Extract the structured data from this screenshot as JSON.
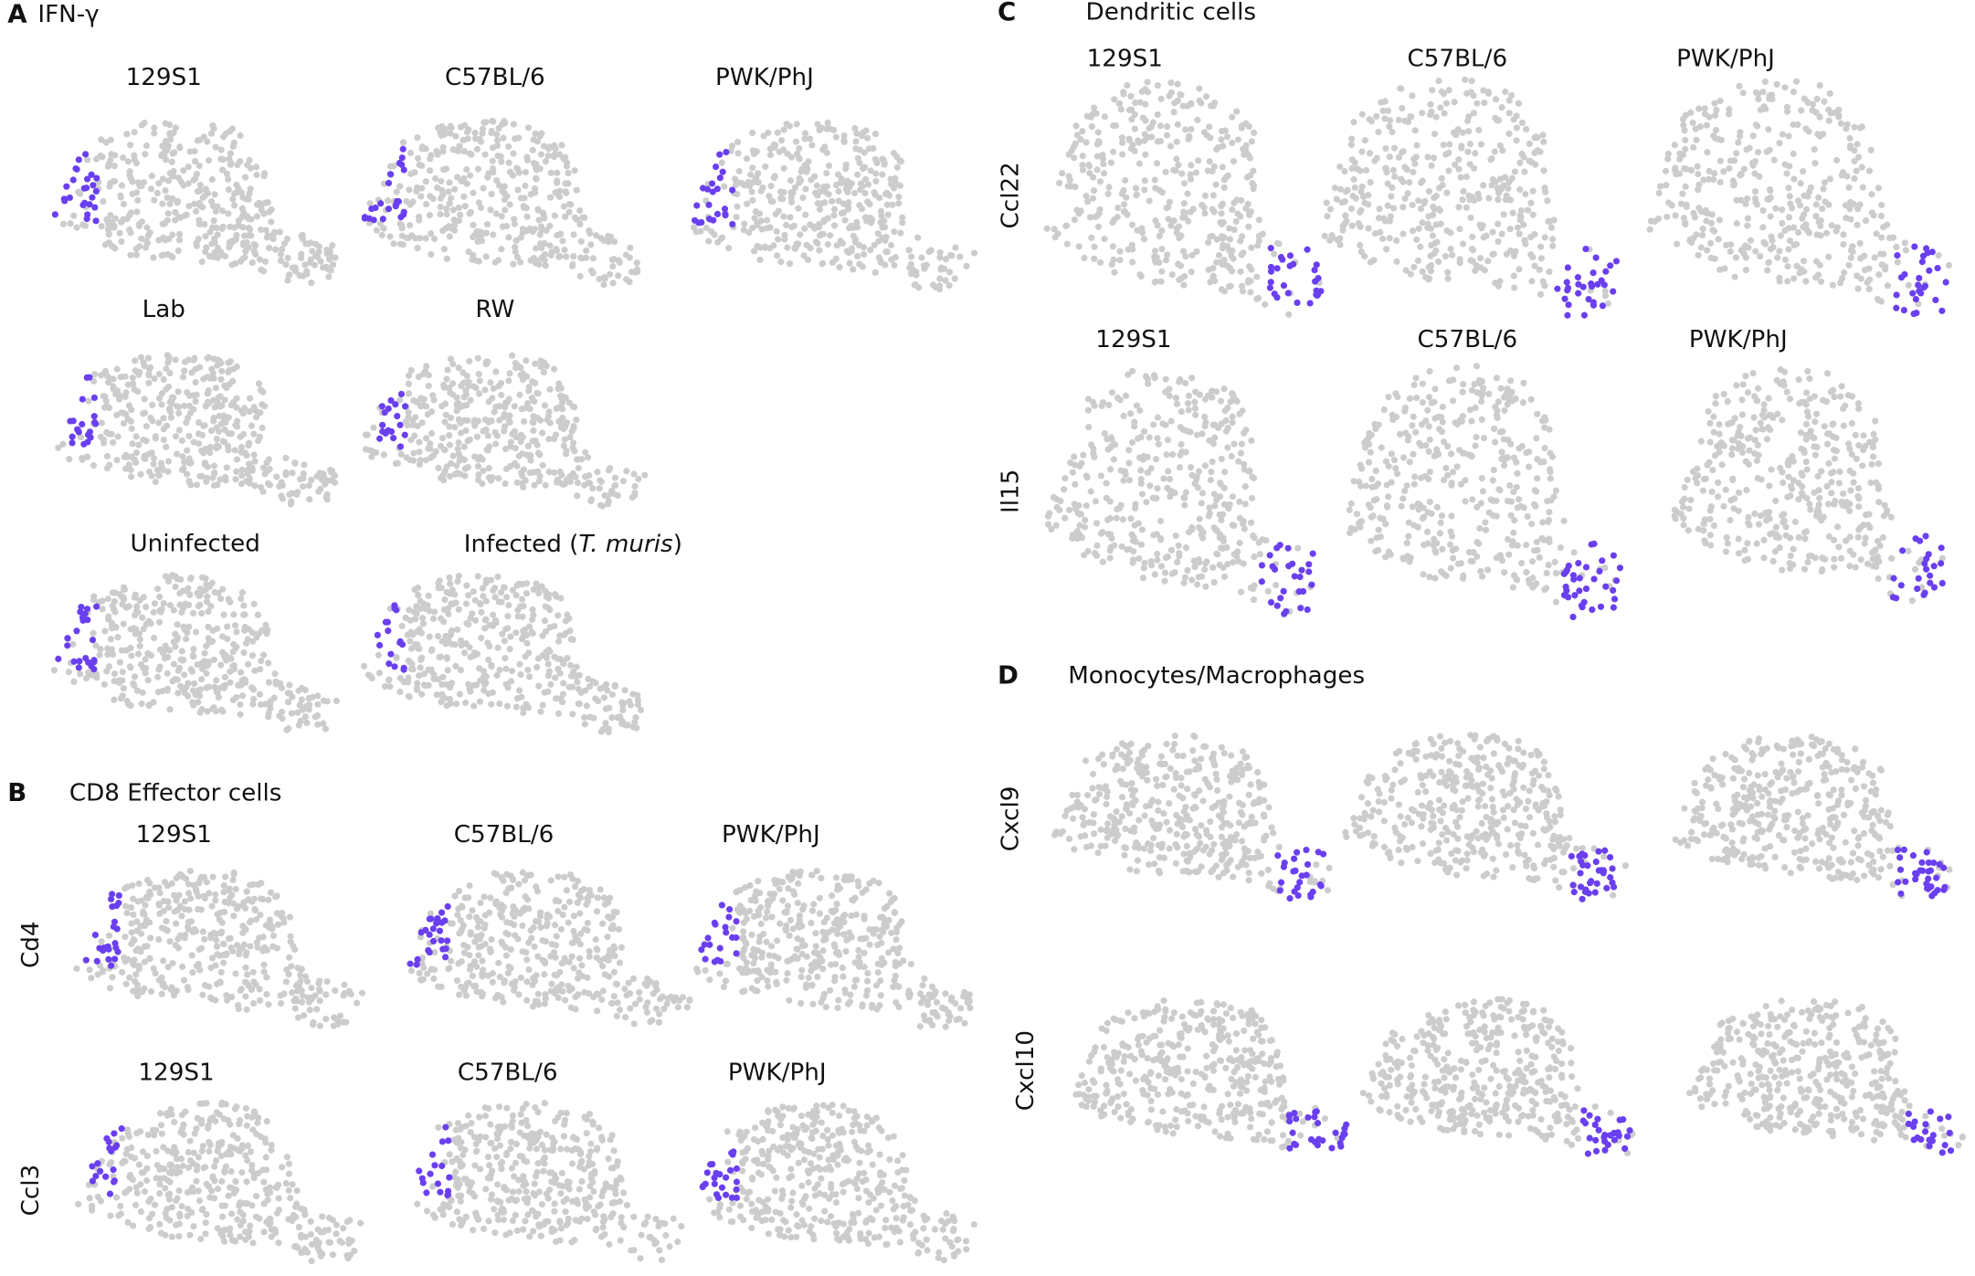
{
  "panels": [
    {
      "label": "A",
      "title": "IFN-γ",
      "rows": [
        {
          "titles": [
            "129S1",
            "C57BL/6",
            "PWK/PhJ"
          ]
        },
        {
          "titles": [
            "Lab",
            "RW"
          ]
        },
        {
          "titles": [
            "Uninfected",
            [
              "Infected (",
              "T. muris",
              ")"
            ]
          ]
        }
      ]
    },
    {
      "label": "B",
      "title": "CD8 Effector cells",
      "rows": [
        {
          "label": "Cd4",
          "titles": [
            "129S1",
            "C57BL/6",
            "PWK/PhJ"
          ]
        },
        {
          "label": "Ccl3",
          "titles": [
            "129S1",
            "C57BL/6",
            "PWK/PhJ"
          ]
        }
      ]
    },
    {
      "label": "C",
      "title": "Dendritic cells",
      "rows": [
        {
          "label": "Ccl22",
          "titles": [
            "129S1",
            "C57BL/6",
            "PWK/PhJ"
          ]
        },
        {
          "label": "Il15",
          "titles": [
            "129S1",
            "C57BL/6",
            "PWK/PhJ"
          ]
        }
      ]
    },
    {
      "label": "D",
      "title": "Monocytes/Macrophages",
      "rows": [
        {
          "label": "Cxcl9"
        },
        {
          "label": "Cxcl10"
        }
      ]
    }
  ]
}
